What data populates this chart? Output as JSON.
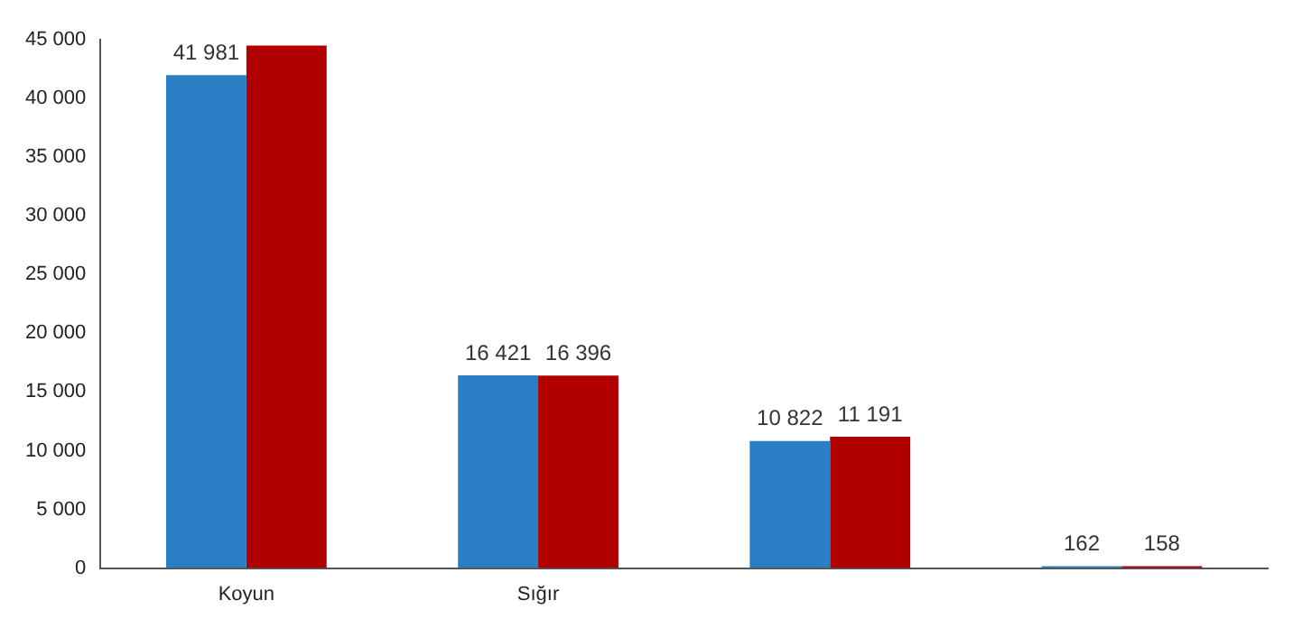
{
  "chart_data": {
    "type": "bar",
    "categories": [
      "Koyun",
      "Sığır",
      null,
      null
    ],
    "series": [
      {
        "color": "#2a7fc4",
        "values": [
          41981,
          16421,
          10822,
          162
        ],
        "value_labels": [
          "41 981",
          "16 421",
          "10 822",
          "162"
        ]
      },
      {
        "color": "#b00000",
        "values": [
          44500,
          16396,
          11191,
          158
        ],
        "value_labels": [
          null,
          "16 396",
          "11 191",
          "158"
        ]
      }
    ],
    "ylim": [
      0,
      45000
    ],
    "yticks": [
      0,
      {
        "value": 5000,
        "label": "5 000"
      },
      {
        "value": 10000,
        "label": "10 000"
      },
      {
        "value": 15000,
        "label": "15 000"
      },
      {
        "value": 20000,
        "label": "20 000"
      },
      {
        "value": 25000,
        "label": "25 000"
      },
      {
        "value": 30000,
        "label": "30 000"
      },
      {
        "value": 35000,
        "label": "35 000"
      },
      {
        "value": 40000,
        "label": "40 000"
      },
      {
        "value": 45000,
        "label": "45 000"
      }
    ],
    "grid": false,
    "legend": false
  }
}
